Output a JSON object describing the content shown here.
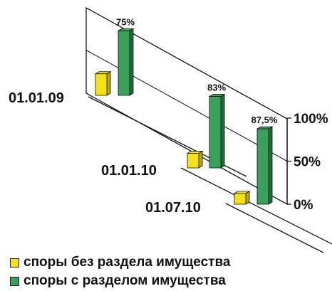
{
  "chart_data": {
    "type": "bar",
    "categories": [
      "01.01.09",
      "01.01.10",
      "01.07.10"
    ],
    "series": [
      {
        "name": "споры без раздела имущества",
        "values": [
          25,
          17,
          12.5
        ],
        "color": "#f2e21a"
      },
      {
        "name": "споры с разделом имущества",
        "values": [
          75,
          83,
          87.5
        ],
        "color": "#3aa05a"
      }
    ],
    "data_labels": [
      "75%",
      "83%",
      "87,5%"
    ],
    "y_ticks": [
      "0%",
      "50%",
      "100%"
    ],
    "ylim": [
      0,
      100
    ],
    "legend_position": "bottom"
  }
}
